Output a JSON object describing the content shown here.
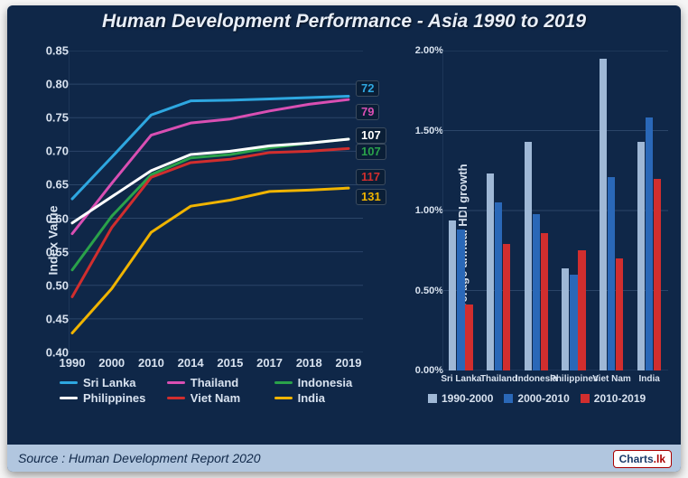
{
  "title": "Human Development Performance - Asia 1990 to 2019",
  "source": "Source :  Human Development Report 2020",
  "logo_text_a": "Charts",
  "logo_text_b": ".lk",
  "colors": {
    "bg": "#0f2748",
    "grid": "#2b4568",
    "text": "#d8e2ef"
  },
  "line_chart": {
    "ylabel": "Index Value",
    "ylim": [
      0.4,
      0.85
    ],
    "ytick_step": 0.05,
    "x_categories": [
      "1990",
      "2000",
      "2010",
      "2014",
      "2015",
      "2017",
      "2018",
      "2019"
    ],
    "series": [
      {
        "name": "Sri Lanka",
        "color": "#2ea7e0",
        "values": [
          0.629,
          0.691,
          0.754,
          0.775,
          0.776,
          0.778,
          0.78,
          0.782
        ],
        "end_label": "72"
      },
      {
        "name": "Thailand",
        "color": "#d94fb3",
        "values": [
          0.577,
          0.652,
          0.724,
          0.742,
          0.748,
          0.76,
          0.77,
          0.777
        ],
        "end_label": "79"
      },
      {
        "name": "Indonesia",
        "color": "#2aa24a",
        "values": [
          0.523,
          0.603,
          0.665,
          0.69,
          0.695,
          0.705,
          0.712,
          0.718
        ],
        "end_label": "107"
      },
      {
        "name": "Philippines",
        "color": "#ffffff",
        "values": [
          0.593,
          0.632,
          0.671,
          0.695,
          0.7,
          0.708,
          0.712,
          0.718
        ],
        "end_label": "107"
      },
      {
        "name": "Viet Nam",
        "color": "#d12e2e",
        "values": [
          0.483,
          0.586,
          0.661,
          0.683,
          0.688,
          0.698,
          0.7,
          0.704
        ],
        "end_label": "117"
      },
      {
        "name": "India",
        "color": "#f0b400",
        "values": [
          0.429,
          0.495,
          0.579,
          0.618,
          0.627,
          0.64,
          0.642,
          0.645
        ],
        "end_label": "131"
      }
    ]
  },
  "bar_chart": {
    "ylabel": "Average annual HDI growth",
    "ylim": [
      0,
      2.0
    ],
    "ytick_step": 0.5,
    "ytick_fmt": "percent",
    "categories": [
      "Sri Lanka",
      "Thailand",
      "Indonesia",
      "Philippines",
      "Viet Nam",
      "India"
    ],
    "periods": [
      {
        "name": "1990-2000",
        "color": "#9fb8d6",
        "values": [
          0.94,
          1.23,
          1.43,
          0.64,
          1.95,
          1.43
        ]
      },
      {
        "name": "2000-2010",
        "color": "#2a68b8",
        "values": [
          0.88,
          1.05,
          0.98,
          0.6,
          1.21,
          1.58
        ]
      },
      {
        "name": "2010-2019",
        "color": "#d12e2e",
        "values": [
          0.41,
          0.79,
          0.86,
          0.75,
          0.7,
          1.2
        ]
      }
    ],
    "group_gap": 0.35,
    "bar_gap": 0.02
  }
}
